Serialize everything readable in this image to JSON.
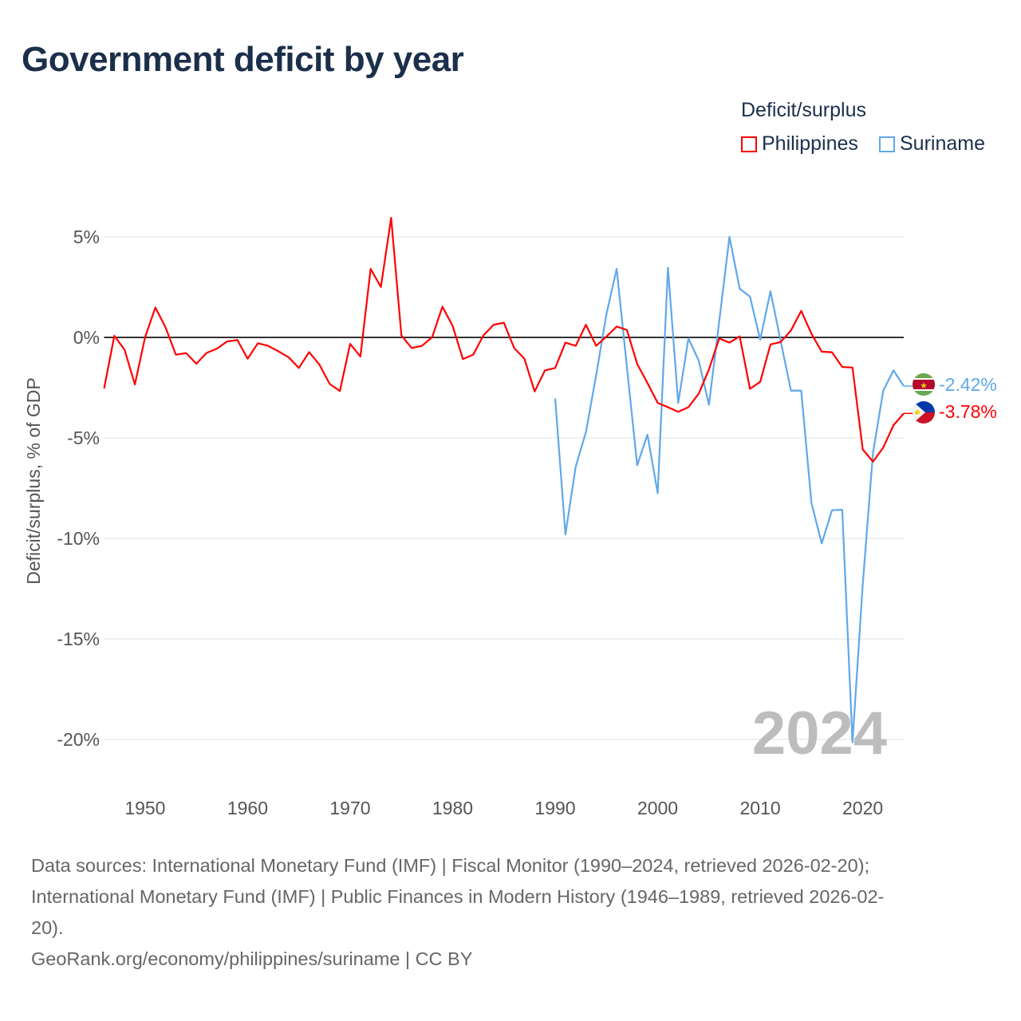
{
  "chart_data": {
    "type": "line",
    "title": "Government deficit by year",
    "xlabel": "",
    "ylabel": "Deficit/surplus, % of GDP",
    "xlim": [
      1946,
      2024
    ],
    "ylim": [
      -20,
      5
    ],
    "x_ticks": [
      1950,
      1960,
      1970,
      1980,
      1990,
      2000,
      2010,
      2020
    ],
    "y_ticks": [
      5,
      0,
      -5,
      -10,
      -15,
      -20
    ],
    "y_tick_labels": [
      "5%",
      "0%",
      "-5%",
      "-10%",
      "-15%",
      "-20%"
    ],
    "grid": true,
    "legend_title": "Deficit/surplus",
    "legend_position": "top-right",
    "year_watermark": "2024",
    "series": [
      {
        "name": "Philippines",
        "color": "#ff0000",
        "end_label": "-3.78%",
        "start_year": 1946,
        "values": [
          -2.54,
          0.08,
          -0.62,
          -2.34,
          0.01,
          1.49,
          0.49,
          -0.86,
          -0.78,
          -1.31,
          -0.77,
          -0.56,
          -0.2,
          -0.13,
          -1.06,
          -0.29,
          -0.42,
          -0.69,
          -0.99,
          -1.52,
          -0.73,
          -1.35,
          -2.31,
          -2.67,
          -0.32,
          -0.95,
          3.41,
          2.51,
          5.95,
          0.1,
          -0.53,
          -0.42,
          0.01,
          1.53,
          0.57,
          -1.08,
          -0.86,
          0.1,
          0.63,
          0.73,
          -0.53,
          -1.06,
          -2.69,
          -1.64,
          -1.52,
          -0.26,
          -0.42,
          0.63,
          -0.42,
          0.04,
          0.54,
          0.37,
          -1.32,
          -2.27,
          -3.26,
          -3.47,
          -3.7,
          -3.47,
          -2.8,
          -1.59,
          -0.05,
          -0.26,
          0.05,
          -2.56,
          -2.21,
          -0.35,
          -0.23,
          0.35,
          1.32,
          0.18,
          -0.71,
          -0.74,
          -1.47,
          -1.5,
          -5.57,
          -6.18,
          -5.48,
          -4.37,
          -3.78
        ]
      },
      {
        "name": "Suriname",
        "color": "#5fa8ea",
        "end_label": "-2.42%",
        "start_year": 1990,
        "values": [
          -3.04,
          -9.8,
          -6.43,
          -4.71,
          -1.87,
          1.16,
          3.41,
          -1.5,
          -6.36,
          -4.84,
          -7.75,
          3.47,
          -3.26,
          -0.05,
          -1.15,
          -3.36,
          0.8,
          5.0,
          2.42,
          2.03,
          -0.12,
          2.3,
          -0.2,
          -2.65,
          -2.65,
          -8.25,
          -10.25,
          -8.6,
          -8.57,
          -20.14,
          -12.3,
          -5.74,
          -2.65,
          -1.64,
          -2.42
        ]
      }
    ]
  },
  "footer": {
    "sources_line1": "Data sources: International Monetary Fund (IMF) | Fiscal Monitor (1990–2024, retrieved 2026-02-20);",
    "sources_line2": "International Monetary Fund (IMF) | Public Finances in Modern History (1946–1989, retrieved 2026-02-",
    "sources_line3": "20).",
    "credit": "GeoRank.org/economy/philippines/suriname | CC BY"
  }
}
